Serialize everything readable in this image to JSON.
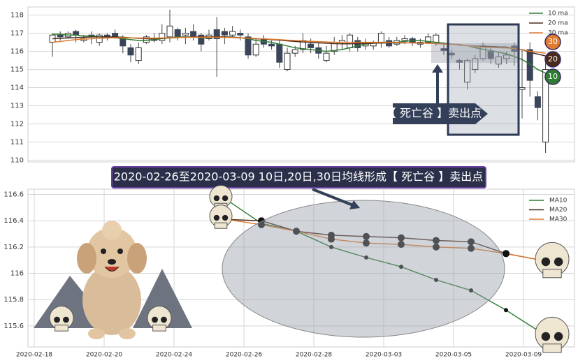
{
  "banner": "2020-02-26至2020-03-09 10日,20日,30日均线形成【 死亡谷 】卖出点",
  "chart_data": [
    {
      "type": "candlestick",
      "grid": true,
      "ylim": [
        109.9,
        118.45
      ],
      "yticks": [
        110,
        111,
        112,
        113,
        114,
        115,
        116,
        117,
        118
      ],
      "up_color": "#ffffff",
      "down_color": "#3b4559",
      "open": [
        116.5,
        116.9,
        116.8,
        117.1,
        116.6,
        116.9,
        116.5,
        116.9,
        117.0,
        116.7,
        116.2,
        115.5,
        116.5,
        116.6,
        116.6,
        116.8,
        117.2,
        116.9,
        117.1,
        116.9,
        116.7,
        117.2,
        117.1,
        116.9,
        117.0,
        116.8,
        115.8,
        116.7,
        116.4,
        116.4,
        115.0,
        115.9,
        116.1,
        116.4,
        116.2,
        115.5,
        116.0,
        116.5,
        116.2,
        116.6,
        116.3,
        116.3,
        116.5,
        116.6,
        116.4,
        116.6,
        116.7,
        116.4,
        116.5,
        116.5,
        116.15,
        115.9,
        115.5,
        114.3,
        115.0,
        115.6,
        116.0,
        115.3,
        115.6,
        116.3,
        113.9,
        116.1,
        113.5,
        111.0
      ],
      "close": [
        116.9,
        116.8,
        117.0,
        116.9,
        116.7,
        116.8,
        116.9,
        116.8,
        116.8,
        116.3,
        115.8,
        116.2,
        116.8,
        116.7,
        117.0,
        117.4,
        116.8,
        117.0,
        116.8,
        116.4,
        116.9,
        116.7,
        116.9,
        117.1,
        116.9,
        115.8,
        116.4,
        116.4,
        116.3,
        115.4,
        115.9,
        116.1,
        116.6,
        116.2,
        115.9,
        115.9,
        116.5,
        116.6,
        116.9,
        116.2,
        116.5,
        116.5,
        117.0,
        116.3,
        116.6,
        116.7,
        116.5,
        116.5,
        116.8,
        116.9,
        116.05,
        115.8,
        115.4,
        115.5,
        115.6,
        116.3,
        115.6,
        115.7,
        115.8,
        116.0,
        114.0,
        114.4,
        112.9,
        115.0
      ],
      "high": [
        117.0,
        117.1,
        117.1,
        117.2,
        116.9,
        117.1,
        117.0,
        117.0,
        117.2,
        116.9,
        116.4,
        116.5,
        116.9,
        117.0,
        117.5,
        118.3,
        117.3,
        117.3,
        117.5,
        117.0,
        117.2,
        117.9,
        117.3,
        117.4,
        117.2,
        117.0,
        116.7,
        116.9,
        116.6,
        116.6,
        116.2,
        116.3,
        117.0,
        116.7,
        116.5,
        116.3,
        116.8,
        116.9,
        117.0,
        116.8,
        116.7,
        116.6,
        117.1,
        116.8,
        116.8,
        116.9,
        116.8,
        116.7,
        117.0,
        117.0,
        116.5,
        116.1,
        115.6,
        115.6,
        115.8,
        116.5,
        116.2,
        116.0,
        116.0,
        116.5,
        116.1,
        116.5,
        113.8,
        115.5
      ],
      "low": [
        115.7,
        116.6,
        116.7,
        116.5,
        116.5,
        116.4,
        116.3,
        116.6,
        116.7,
        115.9,
        115.4,
        115.3,
        116.4,
        116.5,
        116.4,
        116.5,
        116.6,
        116.4,
        116.6,
        116.0,
        116.6,
        114.6,
        116.4,
        116.8,
        116.6,
        115.6,
        115.7,
        116.2,
        116.1,
        115.1,
        114.9,
        115.7,
        115.9,
        115.9,
        115.6,
        115.4,
        115.8,
        116.1,
        116.0,
        116.0,
        116.1,
        116.1,
        116.2,
        116.2,
        116.3,
        116.4,
        116.3,
        116.2,
        116.4,
        116.3,
        115.8,
        115.6,
        115.0,
        113.9,
        114.8,
        115.5,
        115.3,
        115.1,
        115.3,
        115.2,
        112.3,
        113.5,
        112.2,
        110.4
      ],
      "series": [
        {
          "name": "10 ma",
          "color": "#2e7d32",
          "values": [
            116.95,
            116.95,
            116.9,
            116.9,
            116.85,
            116.85,
            116.8,
            116.8,
            116.75,
            116.7,
            116.65,
            116.6,
            116.6,
            116.65,
            116.7,
            116.75,
            116.8,
            116.8,
            116.8,
            116.75,
            116.75,
            116.8,
            116.8,
            116.8,
            116.75,
            116.7,
            116.6,
            116.55,
            116.5,
            116.4,
            116.3,
            116.2,
            116.15,
            116.1,
            116.05,
            116.0,
            116.05,
            116.1,
            116.2,
            116.3,
            116.4,
            116.45,
            116.5,
            116.5,
            116.5,
            116.55,
            116.6,
            116.6,
            116.55,
            116.5,
            116.45,
            116.4,
            116.38,
            116.32,
            116.2,
            116.12,
            116.05,
            115.95,
            115.87,
            115.72,
            115.55,
            115.3,
            115.0,
            114.8
          ]
        },
        {
          "name": "20 ma",
          "color": "#4a2a1c",
          "values": [
            116.7,
            116.72,
            116.74,
            116.76,
            116.78,
            116.8,
            116.8,
            116.8,
            116.8,
            116.78,
            116.75,
            116.72,
            116.7,
            116.7,
            116.72,
            116.74,
            116.76,
            116.78,
            116.8,
            116.8,
            116.8,
            116.8,
            116.8,
            116.78,
            116.75,
            116.72,
            116.7,
            116.68,
            116.65,
            116.62,
            116.58,
            116.55,
            116.52,
            116.5,
            116.47,
            116.45,
            116.43,
            116.42,
            116.42,
            116.43,
            116.44,
            116.45,
            116.46,
            116.47,
            116.47,
            116.47,
            116.47,
            116.46,
            116.45,
            116.44,
            116.42,
            116.4,
            116.35,
            116.32,
            116.29,
            116.28,
            116.27,
            116.25,
            116.24,
            116.15,
            116.1,
            115.95,
            115.85,
            115.75
          ]
        },
        {
          "name": "30 ma",
          "color": "#e07a2e",
          "values": [
            116.5,
            116.55,
            116.6,
            116.65,
            116.68,
            116.7,
            116.72,
            116.74,
            116.75,
            116.75,
            116.75,
            116.74,
            116.73,
            116.73,
            116.74,
            116.75,
            116.76,
            116.77,
            116.78,
            116.78,
            116.78,
            116.78,
            116.77,
            116.76,
            116.75,
            116.73,
            116.71,
            116.69,
            116.67,
            116.65,
            116.62,
            116.6,
            116.58,
            116.56,
            116.54,
            116.52,
            116.5,
            116.5,
            116.5,
            116.5,
            116.5,
            116.5,
            116.5,
            116.5,
            116.49,
            116.48,
            116.47,
            116.46,
            116.45,
            116.43,
            116.41,
            116.39,
            116.37,
            116.32,
            116.26,
            116.23,
            116.22,
            116.2,
            116.19,
            116.15,
            116.1,
            116.0,
            115.95,
            115.9
          ]
        }
      ],
      "badges": [
        {
          "label": "30",
          "color": "#e07a2e"
        },
        {
          "label": "20",
          "color": "#4a2a1c"
        },
        {
          "label": "10",
          "color": "#2e7d32"
        }
      ],
      "annotation": "【 死亡谷 】卖出点"
    },
    {
      "type": "line",
      "grid": true,
      "ylim": [
        115.44,
        116.64
      ],
      "yticks": [
        115.6,
        115.8,
        116.0,
        116.2,
        116.4,
        116.6
      ],
      "categories": [
        "2020-02-18",
        null,
        "2020-02-20",
        null,
        "2020-02-24",
        null,
        "2020-02-26",
        null,
        "2020-02-28",
        null,
        "2020-03-03",
        null,
        "2020-03-05",
        null,
        "2020-03-09"
      ],
      "series": [
        {
          "name": "MA10",
          "color": "#2e7d32",
          "values": [
            null,
            null,
            null,
            null,
            null,
            116.56,
            116.38,
            116.32,
            116.2,
            116.12,
            116.05,
            115.95,
            115.87,
            115.72,
            115.55
          ]
        },
        {
          "name": "MA20",
          "color": "#4a2a1c",
          "values": [
            null,
            null,
            null,
            null,
            null,
            116.41,
            116.4,
            116.32,
            116.29,
            116.28,
            116.27,
            116.25,
            116.24,
            116.15,
            116.1
          ]
        },
        {
          "name": "MA30",
          "color": "#e07a2e",
          "values": [
            null,
            null,
            null,
            null,
            null,
            116.41,
            116.37,
            116.32,
            116.26,
            116.23,
            116.22,
            116.2,
            116.19,
            116.15,
            116.1
          ]
        }
      ]
    }
  ]
}
